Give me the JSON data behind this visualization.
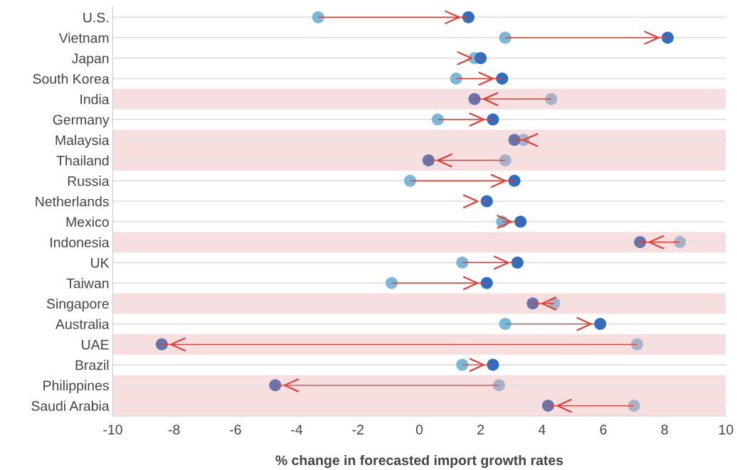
{
  "chart_data": {
    "type": "bar",
    "orientation": "horizontal",
    "xlabel": "% change in forecasted import growth rates",
    "categories": [
      "U.S.",
      "Vietnam",
      "Japan",
      "South Korea",
      "India",
      "Germany",
      "Malaysia",
      "Thailand",
      "Russia",
      "Netherlands",
      "Mexico",
      "Indonesia",
      "UK",
      "Taiwan",
      "Singapore",
      "Australia",
      "UAE",
      "Brazil",
      "Philippines",
      "Saudi Arabia"
    ],
    "series": [
      {
        "color": "#e8382f",
        "base": [
          -3.3,
          2.8,
          1.8,
          1.2,
          4.3,
          0.6,
          3.4,
          2.8,
          -0.3,
          2.0,
          2.7,
          8.5,
          1.4,
          -0.9,
          4.4,
          2.8,
          7.1,
          1.4,
          2.6,
          7.0
        ],
        "values": [
          4.9,
          5.3,
          0.2,
          1.5,
          -2.5,
          1.8,
          -0.3,
          -2.5,
          3.4,
          0.2,
          0.6,
          -1.3,
          1.8,
          3.1,
          -0.7,
          3.1,
          -15.5,
          1.0,
          -7.3,
          -2.8
        ]
      },
      {
        "type": "scatter",
        "x": [
          "U.S.",
          "Vietnam",
          "Japan",
          "South Korea",
          "India",
          "Germany",
          "Malaysia",
          "Thailand",
          "Russia",
          "Netherlands",
          "Mexico",
          "Indonesia",
          "UK",
          "Taiwan",
          "Singapore",
          "Australia",
          "UAE",
          "Brazil",
          "Philippines",
          "Saudi Arabia"
        ],
        "values": [
          -3.3,
          2.8,
          1.8,
          1.2,
          4.3,
          0.6,
          3.4,
          2.8,
          -0.3,
          null,
          2.7,
          8.5,
          1.4,
          -0.9,
          4.4,
          2.8,
          7.1,
          1.4,
          2.6,
          7.0
        ],
        "colors": [
          "#7ab8d9",
          "#7ab8d9",
          "#7ab8d9",
          "#7ab8d9",
          "#a7b2c9",
          "#7ab8d9",
          "#a7b2c9",
          "#a7b2c9",
          "#7ab8d9",
          "#7ab8d9",
          "#7ab8d9",
          "#a7b2c9",
          "#7ab8d9",
          "#7ab8d9",
          "#a7b2c9",
          "#7ab8d9",
          "#a7b2c9",
          "#7ab8d9",
          "#a7b2c9",
          "#a7b2c9"
        ]
      },
      {
        "type": "scatter",
        "x": [
          "U.S.",
          "Vietnam",
          "Japan",
          "South Korea",
          "India",
          "Germany",
          "Malaysia",
          "Thailand",
          "Russia",
          "Netherlands",
          "Mexico",
          "Indonesia",
          "UK",
          "Taiwan",
          "Singapore",
          "Australia",
          "UAE",
          "Brazil",
          "Philippines",
          "Saudi Arabia"
        ],
        "values": [
          1.6,
          8.1,
          2.0,
          2.7,
          1.8,
          2.4,
          3.1,
          0.3,
          3.1,
          2.2,
          3.3,
          7.2,
          3.2,
          2.2,
          3.7,
          5.9,
          -8.4,
          2.4,
          -4.7,
          4.2
        ],
        "colors": [
          "#2e6dbf",
          "#2e6dbf",
          "#2e6dbf",
          "#2e6dbf",
          "#6a74a8",
          "#2e6dbf",
          "#6a74a8",
          "#6a74a8",
          "#2e6dbf",
          "#2e6dbf",
          "#2e6dbf",
          "#6a74a8",
          "#2e6dbf",
          "#2e6dbf",
          "#6a74a8",
          "#2e6dbf",
          "#6a74a8",
          "#2e6dbf",
          "#6a74a8",
          "#6a74a8"
        ]
      }
    ],
    "bands": [
      {
        "axis": "y",
        "from": "India",
        "to": "India",
        "color": "#f7dfe0"
      },
      {
        "axis": "y",
        "from": "Malaysia",
        "to": "Thailand",
        "color": "#f7dfe0"
      },
      {
        "axis": "y",
        "from": "Indonesia",
        "to": "Indonesia",
        "color": "#f7dfe0"
      },
      {
        "axis": "y",
        "from": "Singapore",
        "to": "Singapore",
        "color": "#f7dfe0"
      },
      {
        "axis": "y",
        "from": "UAE",
        "to": "UAE",
        "color": "#f7dfe0"
      },
      {
        "axis": "y",
        "from": "Philippines",
        "to": "Saudi Arabia",
        "color": "#f7dfe0"
      }
    ],
    "xlim": [
      -10,
      10
    ],
    "xticks": [
      -10,
      -8,
      -6,
      -4,
      -2,
      0,
      2,
      4,
      6,
      8,
      10
    ],
    "grid": "y",
    "marker": "circle",
    "legend": false
  }
}
